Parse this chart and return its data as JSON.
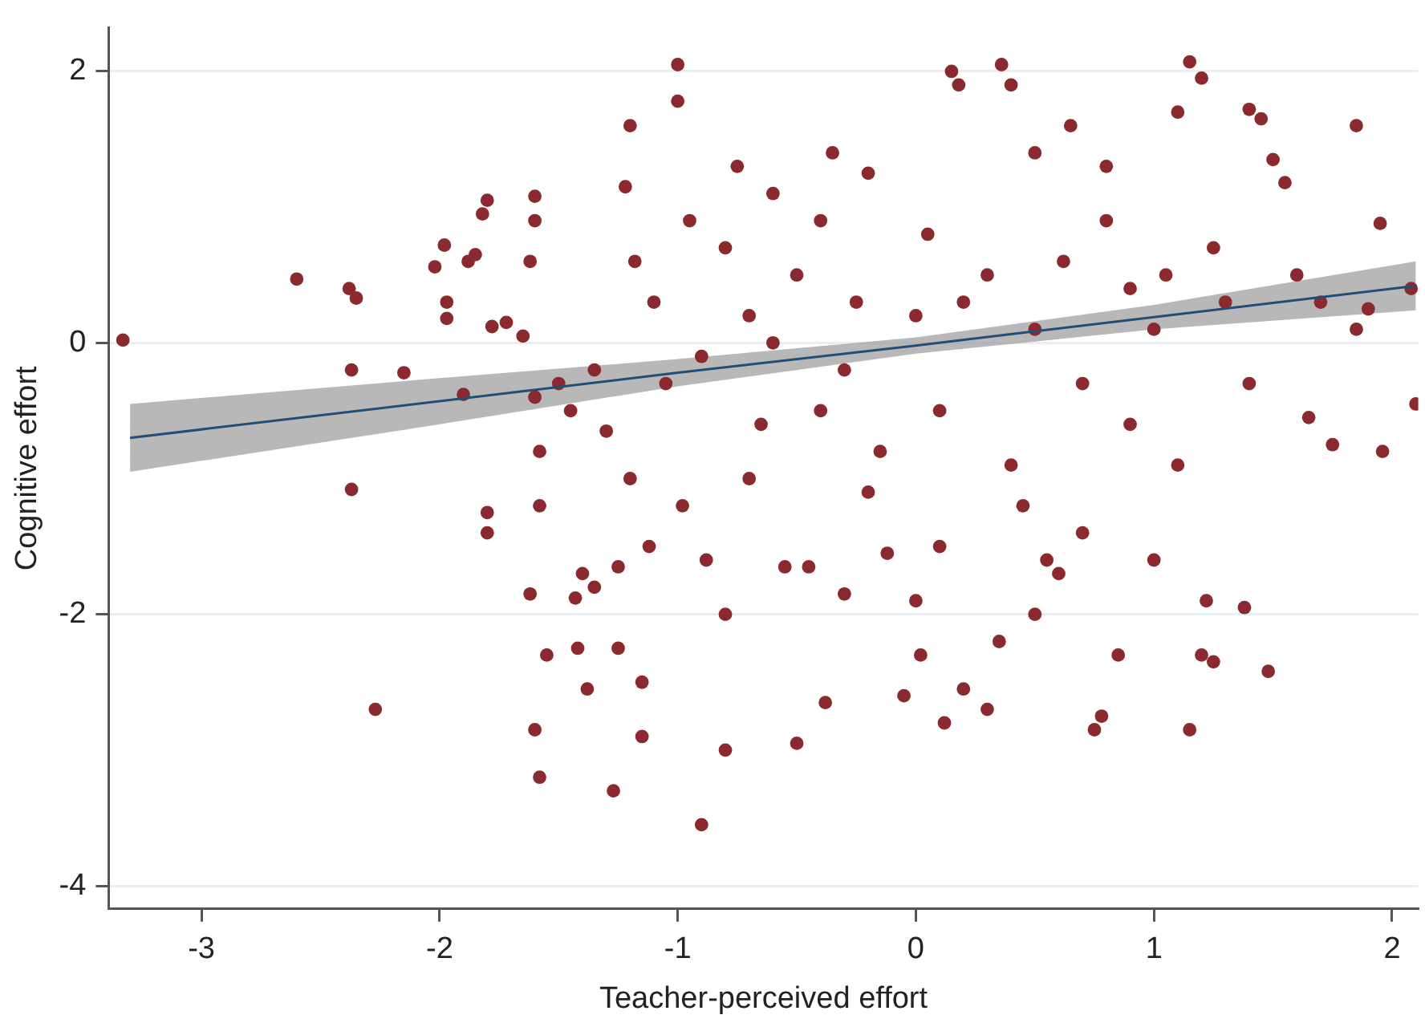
{
  "chart_data": {
    "type": "scatter",
    "xlabel": "Teacher-perceived effort",
    "ylabel": "Cognitive effort",
    "xlim": [
      -3.39,
      2.11
    ],
    "xticks": [
      -3,
      -2,
      -1,
      0,
      1,
      2
    ],
    "ylim": [
      -4.17,
      2.32
    ],
    "yticks": [
      -4,
      -2,
      0,
      2
    ],
    "grid": "y",
    "marker": "circle",
    "legend": false,
    "x": [
      -3.33,
      -2.6,
      -2.38,
      -2.35,
      -2.37,
      -2.37,
      -2.27,
      -2.15,
      -2.02,
      -1.98,
      -1.97,
      -1.97,
      -1.88,
      -1.85,
      -1.8,
      -1.82,
      -1.9,
      -1.78,
      -1.72,
      -1.65,
      -1.62,
      -1.6,
      -1.6,
      -1.58,
      -1.6,
      -1.58,
      -1.6,
      -1.58,
      -1.62,
      -1.8,
      -1.8,
      -1.55,
      -1.5,
      -1.45,
      -1.43,
      -1.42,
      -1.38,
      -1.4,
      -1.35,
      -1.35,
      -1.3,
      -1.27,
      -1.25,
      -1.25,
      -1.2,
      -1.22,
      -1.18,
      -1.15,
      -1.15,
      -1.12,
      -1.05,
      -1.0,
      -1.0,
      -0.98,
      -0.95,
      -0.9,
      -0.88,
      -0.8,
      -0.8,
      -0.75,
      -0.7,
      -0.65,
      -0.6,
      -0.55,
      -0.5,
      -0.5,
      -0.45,
      -0.4,
      -0.38,
      -0.35,
      -0.3,
      -0.25,
      -0.2,
      -0.15,
      -0.12,
      -0.05,
      0.0,
      0.02,
      0.05,
      0.1,
      0.12,
      0.15,
      0.18,
      0.2,
      0.2,
      0.3,
      0.35,
      0.36,
      0.4,
      0.45,
      0.5,
      0.5,
      0.55,
      0.6,
      0.62,
      0.65,
      0.7,
      0.75,
      0.78,
      0.8,
      0.85,
      0.9,
      1.0,
      1.05,
      1.1,
      1.15,
      1.15,
      1.2,
      1.2,
      1.22,
      1.25,
      1.3,
      1.38,
      1.4,
      1.45,
      1.48,
      1.5,
      1.55,
      1.6,
      1.7,
      1.75,
      1.85,
      1.85,
      1.9,
      1.95,
      1.96,
      2.08,
      2.1,
      1.65,
      1.4,
      1.0,
      0.7,
      0.3,
      0.0,
      -0.3,
      -0.6,
      -0.9,
      -1.1,
      -0.8,
      -0.4,
      0.1,
      0.5,
      0.9,
      1.25,
      1.1,
      -0.2,
      -0.7,
      -1.2,
      0.4,
      0.8
    ],
    "series": [
      {
        "color": "#8b2a2e",
        "values": [
          0.02,
          0.47,
          0.4,
          0.33,
          -0.2,
          -1.08,
          -2.7,
          -0.22,
          0.56,
          0.72,
          0.18,
          0.3,
          0.6,
          0.65,
          1.05,
          0.95,
          -0.38,
          0.12,
          0.15,
          0.05,
          0.6,
          0.9,
          -0.4,
          -0.8,
          1.08,
          -1.2,
          -2.85,
          -3.2,
          -1.85,
          -1.25,
          -1.4,
          -2.3,
          -0.3,
          -0.5,
          -1.88,
          -2.25,
          -2.55,
          -1.7,
          -1.8,
          -0.2,
          -0.65,
          -3.3,
          -1.65,
          -2.25,
          1.6,
          1.15,
          0.6,
          -2.5,
          -2.9,
          -1.5,
          -0.3,
          2.05,
          1.78,
          -1.2,
          0.9,
          -3.55,
          -1.6,
          -3.0,
          -2.0,
          1.3,
          0.2,
          -0.6,
          1.1,
          -1.65,
          -2.95,
          0.5,
          -1.65,
          -0.5,
          -2.65,
          1.4,
          -1.85,
          0.3,
          1.25,
          -0.8,
          -1.55,
          -2.6,
          -1.9,
          -2.3,
          0.8,
          -1.5,
          -2.8,
          2.0,
          1.9,
          -2.55,
          0.3,
          -2.7,
          -2.2,
          2.05,
          1.9,
          -1.2,
          1.4,
          -2.0,
          -1.6,
          -1.7,
          0.6,
          1.6,
          -1.4,
          -2.85,
          -2.75,
          0.9,
          -2.3,
          0.4,
          -1.6,
          0.5,
          1.7,
          -2.85,
          2.07,
          1.95,
          -2.3,
          -1.9,
          -2.35,
          0.3,
          -1.95,
          1.72,
          1.65,
          -2.42,
          1.35,
          1.18,
          0.5,
          0.3,
          -0.75,
          1.6,
          0.1,
          0.25,
          0.88,
          -0.8,
          0.4,
          -0.45,
          -0.55,
          -0.3,
          0.1,
          -0.3,
          0.5,
          0.2,
          -0.2,
          0.0,
          -0.1,
          0.3,
          0.7,
          0.9,
          -0.5,
          0.1,
          -0.6,
          0.7,
          -0.9,
          -1.1,
          -1.0,
          -1.0,
          -0.9,
          1.3
        ]
      },
      {
        "type": "line",
        "color": "#1f4e79",
        "line_style": "solid",
        "marker": "none",
        "x": [
          -3.3,
          -2,
          -1,
          0,
          1,
          2.1
        ],
        "values": [
          -0.7,
          -0.43,
          -0.22,
          -0.02,
          0.19,
          0.42
        ],
        "lower": [
          -0.95,
          -0.6,
          -0.32,
          -0.08,
          0.1,
          0.24
        ],
        "upper": [
          -0.45,
          -0.26,
          -0.12,
          0.04,
          0.28,
          0.6
        ]
      }
    ]
  }
}
